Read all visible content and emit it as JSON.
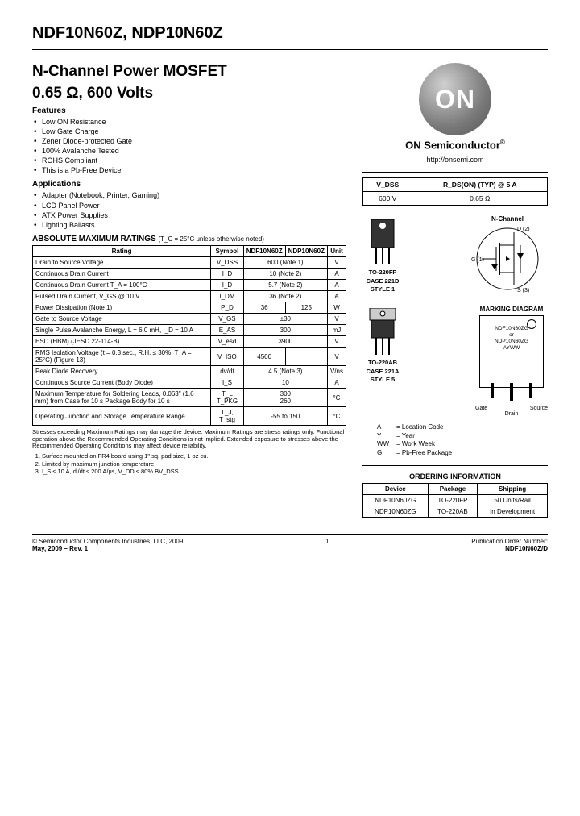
{
  "header": {
    "partnums": "NDF10N60Z, NDP10N60Z"
  },
  "title": {
    "line1": "N-Channel Power MOSFET",
    "line2": "0.65 Ω, 600 Volts"
  },
  "features": {
    "heading": "Features",
    "items": [
      "Low ON Resistance",
      "Low Gate Charge",
      "Zener Diode-protected Gate",
      "100% Avalanche Tested",
      "ROHS Compliant",
      "This is a Pb-Free Device"
    ]
  },
  "applications": {
    "heading": "Applications",
    "items": [
      "Adapter (Notebook, Printer, Gaming)",
      "LCD Panel Power",
      "ATX Power Supplies",
      "Lighting Ballasts"
    ]
  },
  "ratings": {
    "heading": "ABSOLUTE MAXIMUM RATINGS",
    "condition": "(T_C = 25°C unless otherwise noted)",
    "columns": [
      "Rating",
      "Symbol",
      "NDF10N60Z",
      "NDP10N60Z",
      "Unit"
    ],
    "rows": [
      {
        "rating": "Drain to Source Voltage",
        "symbol": "V_DSS",
        "v1": "600 (Note 1)",
        "v2": "",
        "unit": "V",
        "span": true
      },
      {
        "rating": "Continuous Drain Current",
        "symbol": "I_D",
        "v1": "10 (Note 2)",
        "v2": "",
        "unit": "A",
        "span": true
      },
      {
        "rating": "Continuous Drain Current T_A = 100°C",
        "symbol": "I_D",
        "v1": "5.7 (Note 2)",
        "v2": "",
        "unit": "A",
        "span": true
      },
      {
        "rating": "Pulsed Drain Current, V_GS @ 10 V",
        "symbol": "I_DM",
        "v1": "36 (Note 2)",
        "v2": "",
        "unit": "A",
        "span": true
      },
      {
        "rating": "Power Dissipation (Note 1)",
        "symbol": "P_D",
        "v1": "36",
        "v2": "125",
        "unit": "W",
        "span": false
      },
      {
        "rating": "Gate to Source Voltage",
        "symbol": "V_GS",
        "v1": "±30",
        "v2": "",
        "unit": "V",
        "span": true
      },
      {
        "rating": "Single Pulse Avalanche Energy, L = 6.0 mH, I_D = 10 A",
        "symbol": "E_AS",
        "v1": "300",
        "v2": "",
        "unit": "mJ",
        "span": true
      },
      {
        "rating": "ESD (HBM) (JESD 22-114-B)",
        "symbol": "V_esd",
        "v1": "3900",
        "v2": "",
        "unit": "V",
        "span": true
      },
      {
        "rating": "RMS Isolation Voltage (t = 0.3 sec., R.H. ≤ 30%, T_A = 25°C) (Figure 13)",
        "symbol": "V_ISO",
        "v1": "4500",
        "v2": "",
        "unit": "V",
        "span": false
      },
      {
        "rating": "Peak Diode Recovery",
        "symbol": "dv/dt",
        "v1": "4.5 (Note 3)",
        "v2": "",
        "unit": "V/ns",
        "span": true
      },
      {
        "rating": "Continuous Source Current (Body Diode)",
        "symbol": "I_S",
        "v1": "10",
        "v2": "",
        "unit": "A",
        "span": true
      },
      {
        "rating": "Maximum Temperature for Soldering Leads, 0.063\" (1.6 mm) from Case for 10 s Package Body for 10 s",
        "symbol": "T_L\nT_PKG",
        "v1": "300\n260",
        "v2": "",
        "unit": "°C",
        "span": true
      },
      {
        "rating": "Operating Junction and Storage Temperature Range",
        "symbol": "T_J, T_stg",
        "v1": "-55 to 150",
        "v2": "",
        "unit": "°C",
        "span": true
      }
    ]
  },
  "stress_note": "Stresses exceeding Maximum Ratings may damage the device. Maximum Ratings are stress ratings only. Functional operation above the Recommended Operating Conditions is not implied. Extended exposure to stresses above the Recommended Operating Conditions may affect device reliability.",
  "notes": [
    "Surface mounted on FR4 board using 1\" sq. pad size, 1 oz cu.",
    "Limited by maximum junction temperature.",
    "I_S ≤ 10 A, di/dt ≤ 200 A/µs, V_DD ≤ 80% BV_DSS"
  ],
  "company": {
    "name": "ON Semiconductor",
    "url": "http://onsemi.com"
  },
  "spec_table": {
    "headers": [
      "V_DSS",
      "R_DS(ON) (TYP) @ 5 A"
    ],
    "values": [
      "600 V",
      "0.65 Ω"
    ]
  },
  "schematic": {
    "label": "N-Channel",
    "pins": {
      "d": "D (2)",
      "g": "G (1)",
      "s": "S (3)"
    }
  },
  "packages": [
    {
      "name": "TO-220FP",
      "case": "CASE 221D",
      "style": "STYLE 1"
    },
    {
      "name": "TO-220AB",
      "case": "CASE 221A",
      "style": "STYLE 5"
    }
  ],
  "marking": {
    "heading": "MARKING DIAGRAM",
    "lines": [
      "NDF10N60ZG",
      "or",
      "NDP10N60ZG",
      "AYWW"
    ],
    "pins": [
      "Gate",
      "Drain",
      "Source"
    ]
  },
  "legend": {
    "items": [
      {
        "k": "A",
        "v": "= Location Code"
      },
      {
        "k": "Y",
        "v": "= Year"
      },
      {
        "k": "WW",
        "v": "= Work Week"
      },
      {
        "k": "G",
        "v": "= Pb-Free Package"
      }
    ]
  },
  "ordering": {
    "heading": "ORDERING INFORMATION",
    "columns": [
      "Device",
      "Package",
      "Shipping"
    ],
    "rows": [
      [
        "NDF10N60ZG",
        "TO-220FP",
        "50 Units/Rail"
      ],
      [
        "NDP10N60ZG",
        "TO-220AB",
        "In Development"
      ]
    ]
  },
  "footer": {
    "copyright": "© Semiconductor Components Industries, LLC, 2009",
    "date": "May, 2009 – Rev. 1",
    "page": "1",
    "pub_head": "Publication Order Number:",
    "pub": "NDF10N60Z/D"
  },
  "colors": {
    "text": "#000000",
    "bg": "#ffffff",
    "logo_grad_light": "#d0d0d0",
    "logo_grad_dark": "#555555"
  }
}
